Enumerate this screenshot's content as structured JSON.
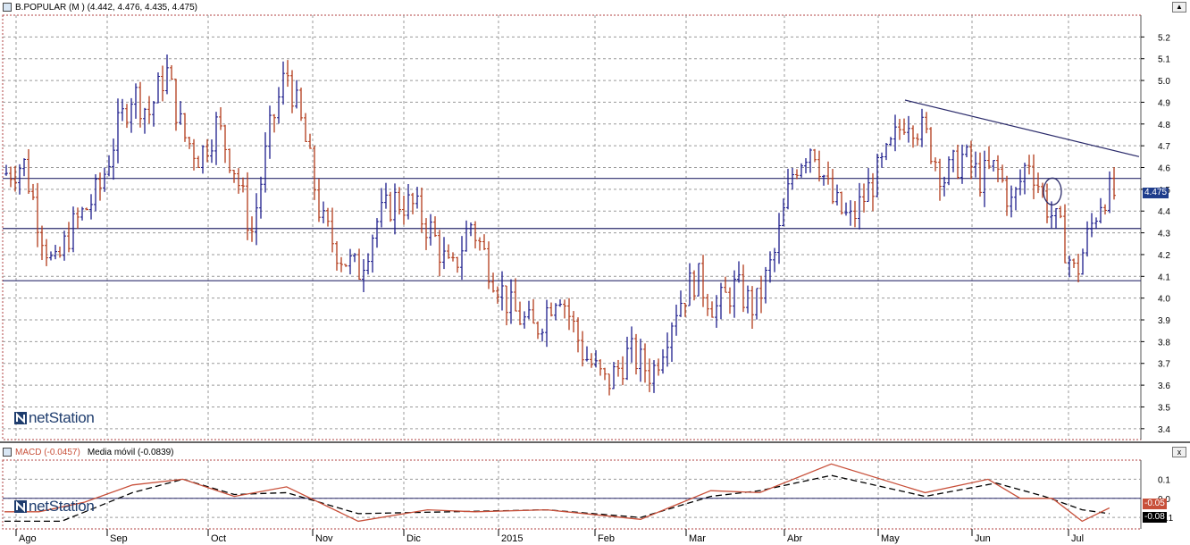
{
  "window": {
    "price_title": "B.POPULAR (M ) (4.442, 4.476, 4.435, 4.475)",
    "macd_title": "MACD (-0.0457)",
    "signal_title": "Media móvil (-0.0839)",
    "close_button": "x",
    "max_button": "▲"
  },
  "brand": {
    "logo_text": "netStation"
  },
  "colors": {
    "up": "#1c1c8c",
    "down": "#b23a1a",
    "grid": "#9a9a9a",
    "line": "#2b2b6b",
    "macd_line": "#c8503a",
    "signal_line": "#000000",
    "last_price_bg": "#1f3d8c",
    "macd_label_bg": "#c8503a"
  },
  "chart_data": {
    "type": "ohlc",
    "x_labels": [
      "Ago",
      "Sep",
      "Oct",
      "Nov",
      "Dic",
      "2015",
      "Feb",
      "Mar",
      "Abr",
      "May",
      "Jun",
      "Jul"
    ],
    "y_ticks": [
      "5.2",
      "5.1",
      "5.0",
      "4.9",
      "4.8",
      "4.7",
      "4.6",
      "4.5",
      "4.4",
      "4.3",
      "4.2",
      "4.1",
      "4.0",
      "3.9",
      "3.8",
      "3.7",
      "3.6",
      "3.5",
      "3.4"
    ],
    "ylim": [
      3.35,
      5.3
    ],
    "last_price": 4.475,
    "last_price_label": "4.475",
    "horizontal_lines": [
      4.55,
      4.32,
      4.08
    ],
    "trendline": {
      "from": {
        "month": "May",
        "value": 4.91
      },
      "to": {
        "month": "Jul",
        "value": 4.65
      }
    },
    "ellipse_marker": {
      "month": "Jun",
      "value": 4.49
    },
    "price_path": [
      [
        "Ago",
        4.62
      ],
      [
        "Ago",
        4.35
      ],
      [
        "Ago",
        4.12
      ],
      [
        "Ago",
        4.3
      ],
      [
        "Ago",
        4.4
      ],
      [
        "Ago",
        4.5
      ],
      [
        "Sep",
        4.75
      ],
      [
        "Sep",
        4.95
      ],
      [
        "Sep",
        4.85
      ],
      [
        "Sep",
        5.05
      ],
      [
        "Sep",
        4.75
      ],
      [
        "Sep",
        4.65
      ],
      [
        "Oct",
        4.8
      ],
      [
        "Oct",
        4.6
      ],
      [
        "Oct",
        4.3
      ],
      [
        "Oct",
        4.75
      ],
      [
        "Oct",
        5.05
      ],
      [
        "Oct",
        4.75
      ],
      [
        "Nov",
        4.35
      ],
      [
        "Nov",
        4.2
      ],
      [
        "Nov",
        4.12
      ],
      [
        "Nov",
        4.35
      ],
      [
        "Nov",
        4.45
      ],
      [
        "Dic",
        4.42
      ],
      [
        "Dic",
        4.3
      ],
      [
        "Dic",
        4.1
      ],
      [
        "Dic",
        4.35
      ],
      [
        "Dic",
        4.15
      ],
      [
        "2015",
        3.95
      ],
      [
        "2015",
        3.85
      ],
      [
        "2015",
        4.05
      ],
      [
        "2015",
        3.75
      ],
      [
        "Feb",
        3.6
      ],
      [
        "Feb",
        3.75
      ],
      [
        "Feb",
        3.65
      ],
      [
        "Feb",
        3.95
      ],
      [
        "Mar",
        4.1
      ],
      [
        "Mar",
        3.95
      ],
      [
        "Mar",
        4.05
      ],
      [
        "Mar",
        3.95
      ],
      [
        "Mar",
        4.2
      ],
      [
        "Abr",
        4.6
      ],
      [
        "Abr",
        4.72
      ],
      [
        "Abr",
        4.45
      ],
      [
        "Abr",
        4.35
      ],
      [
        "Abr",
        4.5
      ],
      [
        "May",
        4.65
      ],
      [
        "May",
        4.85
      ],
      [
        "May",
        4.75
      ],
      [
        "May",
        4.55
      ],
      [
        "May",
        4.65
      ],
      [
        "Jun",
        4.55
      ],
      [
        "Jun",
        4.6
      ],
      [
        "Jun",
        4.42
      ],
      [
        "Jun",
        4.65
      ],
      [
        "Jun",
        4.45
      ],
      [
        "Jun",
        4.3
      ],
      [
        "Jul",
        4.1
      ],
      [
        "Jul",
        4.3
      ],
      [
        "Jul",
        4.48
      ],
      [
        "Jul",
        4.475
      ]
    ],
    "macd": {
      "y_ticks": [
        "0.1",
        "0.0",
        "-0.1"
      ],
      "ylim": [
        -0.16,
        0.2
      ],
      "last_macd_label": "-0.05",
      "last_signal_label": "-0.08",
      "macd_path": [
        [
          "Ago",
          -0.07
        ],
        [
          "Ago",
          -0.02
        ],
        [
          "Sep",
          0.07
        ],
        [
          "Sep",
          0.1
        ],
        [
          "Oct",
          0.01
        ],
        [
          "Oct",
          0.06
        ],
        [
          "Nov",
          -0.12
        ],
        [
          "Dic",
          -0.06
        ],
        [
          "Dic",
          -0.07
        ],
        [
          "2015",
          -0.06
        ],
        [
          "Feb",
          -0.11
        ],
        [
          "Mar",
          0.04
        ],
        [
          "Mar",
          0.03
        ],
        [
          "Abr",
          0.18
        ],
        [
          "May",
          0.03
        ],
        [
          "Jun",
          0.1
        ],
        [
          "Jun",
          0.0
        ],
        [
          "Jun",
          0.0
        ],
        [
          "Jul",
          -0.12
        ],
        [
          "Jul",
          -0.05
        ]
      ],
      "signal_path": [
        [
          "Ago",
          -0.12
        ],
        [
          "Sep",
          0.03
        ],
        [
          "Sep",
          0.1
        ],
        [
          "Oct",
          0.02
        ],
        [
          "Oct",
          0.03
        ],
        [
          "Nov",
          -0.08
        ],
        [
          "Dic",
          -0.07
        ],
        [
          "2015",
          -0.06
        ],
        [
          "Feb",
          -0.1
        ],
        [
          "Mar",
          0.01
        ],
        [
          "Mar",
          0.04
        ],
        [
          "Abr",
          0.12
        ],
        [
          "May",
          0.01
        ],
        [
          "Jun",
          0.08
        ],
        [
          "Jun",
          0.01
        ],
        [
          "Jul",
          -0.06
        ],
        [
          "Jul",
          -0.08
        ]
      ]
    }
  }
}
